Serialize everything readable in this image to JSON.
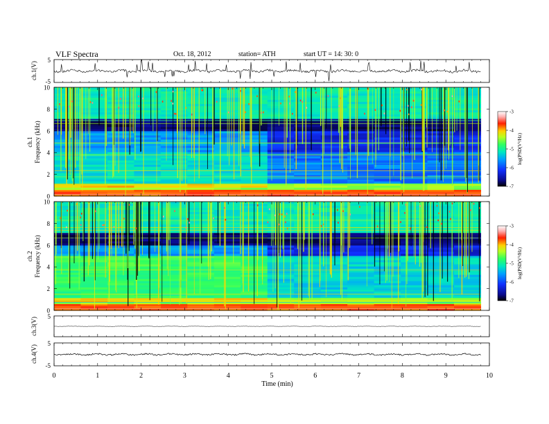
{
  "header": {
    "title": "VLF  Spectra",
    "date": "Oct. 18, 2012",
    "station": "station= ATH",
    "start": "start  UT =   14: 30: 0"
  },
  "chart_data": {
    "type": "heatmap",
    "xlabel": "Time  (min)",
    "xlim": [
      0,
      10
    ],
    "xticks": [
      "0",
      "1",
      "2",
      "3",
      "4",
      "5",
      "6",
      "7",
      "8",
      "9",
      "10"
    ],
    "panels": [
      {
        "id": "ch1-waveform",
        "ylabel": "ch.1(V)",
        "ylim": [
          -5,
          5
        ],
        "yticks": [
          "5",
          "-5"
        ],
        "type": "line"
      },
      {
        "id": "ch1-spectrogram",
        "ylabel": [
          "ch.1",
          "Frequency  (kHz)"
        ],
        "ylim": [
          0,
          10
        ],
        "yticks": [
          "0",
          "2",
          "4",
          "6",
          "8",
          "10"
        ],
        "type": "heatmap",
        "colorbar": {
          "label": "log(PSD(V²/Hz)",
          "range": [
            -7,
            -3
          ],
          "ticks": [
            "-3",
            "-4",
            "-5",
            "-6",
            "-7"
          ]
        }
      },
      {
        "id": "ch2-spectrogram",
        "ylabel": [
          "ch.2",
          "Frequency  (kHz)"
        ],
        "ylim": [
          0,
          10
        ],
        "yticks": [
          "0",
          "2",
          "4",
          "6",
          "8",
          "10"
        ],
        "type": "heatmap",
        "colorbar": {
          "label": "log(PSD(V²/Hz)",
          "range": [
            -7,
            -3
          ],
          "ticks": [
            "-3",
            "-4",
            "-5",
            "-6",
            "-7"
          ]
        }
      },
      {
        "id": "ch3-waveform",
        "ylabel": "ch.3(V)",
        "ylim": [
          -5,
          5
        ],
        "yticks": [
          "5"
        ],
        "type": "line"
      },
      {
        "id": "ch4-waveform",
        "ylabel": "ch.4(V)",
        "ylim": [
          -5,
          5
        ],
        "yticks": [
          "5",
          "-5"
        ],
        "type": "line"
      }
    ],
    "data_end_min": 9.8,
    "grid": false,
    "colors": {
      "cmap": [
        "#000000",
        "#0a0a8a",
        "#1030ff",
        "#00a0ff",
        "#00e8c0",
        "#30ff60",
        "#b8ff20",
        "#ffd000",
        "#ff2000",
        "#ffb0b0",
        "#ffffff"
      ]
    }
  }
}
